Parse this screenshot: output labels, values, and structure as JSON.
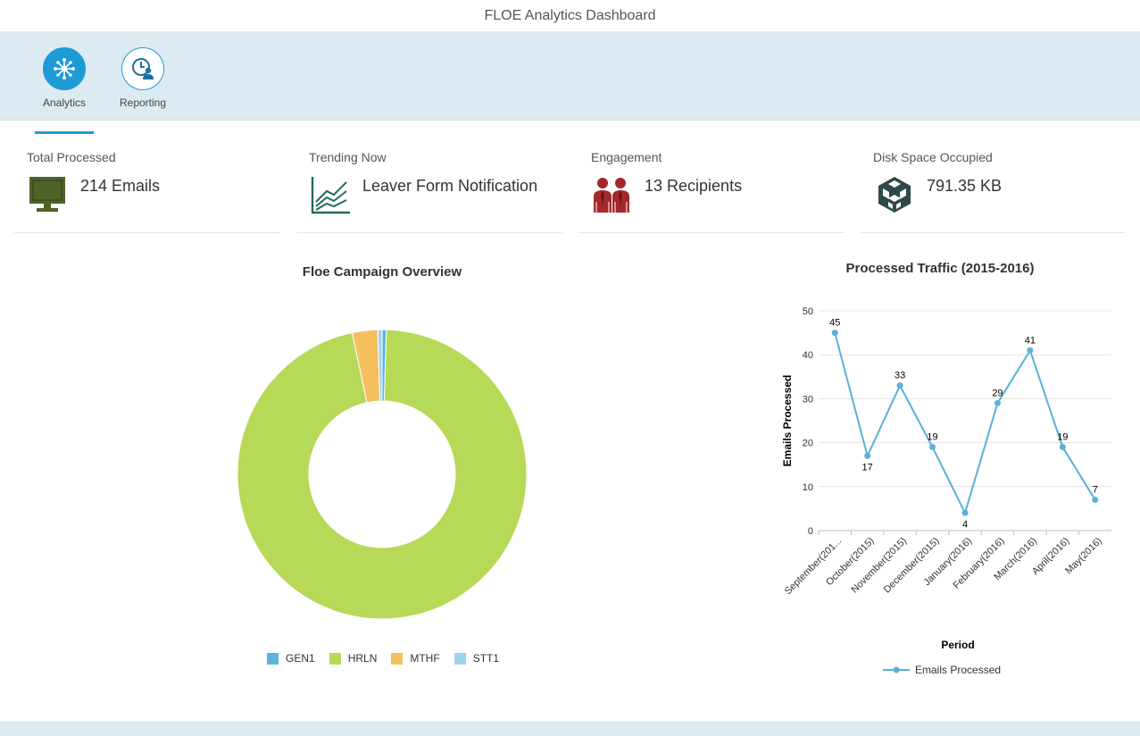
{
  "window": {
    "title": "FLOE Analytics Dashboard"
  },
  "toolbar": {
    "items": [
      {
        "label": "Analytics",
        "icon": "analytics-network-icon",
        "active": true
      },
      {
        "label": "Reporting",
        "icon": "clock-person-icon",
        "active": false
      }
    ]
  },
  "tiles": [
    {
      "title": "Total Processed",
      "value": "214 Emails",
      "icon": "monitor-icon",
      "color": "#4f6228"
    },
    {
      "title": "Trending Now",
      "value": "Leaver Form Notification",
      "icon": "trend-lines-icon",
      "color": "#1f6b5f"
    },
    {
      "title": "Engagement",
      "value": "13 Recipients",
      "icon": "people-icon",
      "color": "#a4282b"
    },
    {
      "title": "Disk Space Occupied",
      "value": "791.35 KB",
      "icon": "cubes-icon",
      "color": "#2c4a4a"
    }
  ],
  "chart_data": [
    {
      "type": "pie",
      "subtype": "donut",
      "title": "Floe Campaign Overview",
      "labels": [
        "GEN1",
        "HRLN",
        "MTHF",
        "STT1"
      ],
      "values": [
        1,
        203,
        6,
        1
      ],
      "colors": [
        "#5cb3db",
        "#b6d957",
        "#f5bf5e",
        "#9fd3f0"
      ],
      "legend": "bottom"
    },
    {
      "type": "line",
      "title": "Processed Traffic (2015-2016)",
      "xlabel": "Period",
      "ylabel": "Emails Processed",
      "categories": [
        "September(201...",
        "October(2015)",
        "November(2015)",
        "December(2015)",
        "January(2016)",
        "February(2016)",
        "March(2016)",
        "April(2016)",
        "May(2016)"
      ],
      "series": [
        {
          "name": "Emails Processed",
          "values": [
            45,
            17,
            33,
            19,
            4,
            29,
            41,
            19,
            7
          ],
          "color": "#5ab1d6"
        }
      ],
      "ylim": [
        0,
        50
      ],
      "yticks": [
        0,
        10,
        20,
        30,
        40,
        50
      ],
      "grid": true,
      "legend": "bottom"
    }
  ]
}
